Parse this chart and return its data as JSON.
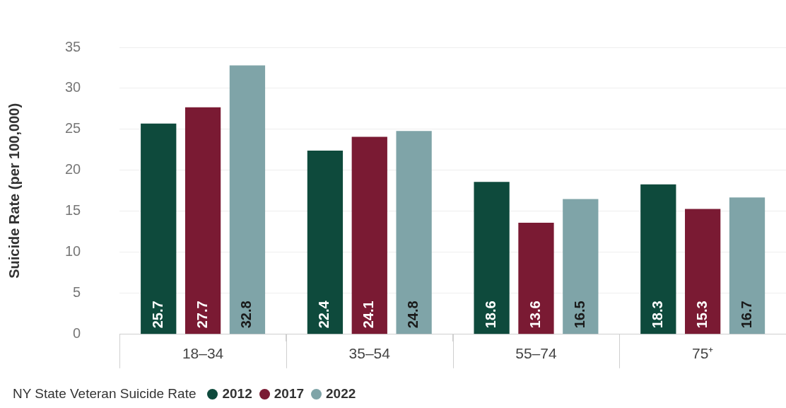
{
  "chart_data": {
    "type": "bar",
    "ylabel": "Suicide Rate (per 100,000)",
    "legend_title": "NY State Veteran Suicide Rate",
    "categories": [
      "18–34",
      "35–54",
      "55–74",
      "75⁺"
    ],
    "series": [
      {
        "name": "2012",
        "color": "#0e4a3c",
        "values": [
          25.7,
          22.4,
          18.6,
          18.3
        ]
      },
      {
        "name": "2017",
        "color": "#7a1a33",
        "values": [
          27.7,
          24.1,
          13.6,
          15.3
        ]
      },
      {
        "name": "2022",
        "color": "#7fa4a8",
        "values": [
          32.8,
          24.8,
          16.5,
          16.7
        ]
      }
    ],
    "ylim": [
      0,
      35
    ],
    "yticks": [
      0,
      5,
      10,
      15,
      20,
      25,
      30,
      35
    ],
    "grid": "y",
    "legend": "bottom left",
    "data_labels": true
  }
}
